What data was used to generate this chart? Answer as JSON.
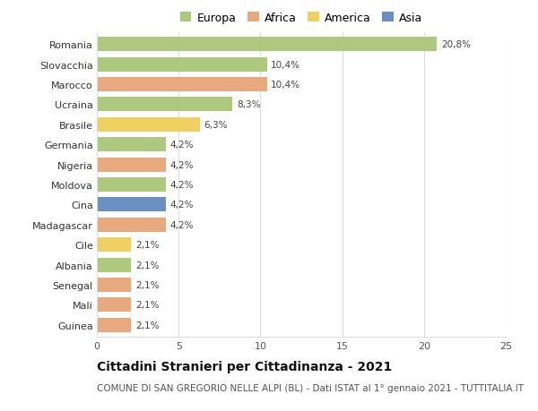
{
  "countries": [
    "Romania",
    "Slovacchia",
    "Marocco",
    "Ucraina",
    "Brasile",
    "Germania",
    "Nigeria",
    "Moldova",
    "Cina",
    "Madagascar",
    "Cile",
    "Albania",
    "Senegal",
    "Mali",
    "Guinea"
  ],
  "values": [
    20.8,
    10.4,
    10.4,
    8.3,
    6.3,
    4.2,
    4.2,
    4.2,
    4.2,
    4.2,
    2.1,
    2.1,
    2.1,
    2.1,
    2.1
  ],
  "labels": [
    "20,8%",
    "10,4%",
    "10,4%",
    "8,3%",
    "6,3%",
    "4,2%",
    "4,2%",
    "4,2%",
    "4,2%",
    "4,2%",
    "2,1%",
    "2,1%",
    "2,1%",
    "2,1%",
    "2,1%"
  ],
  "continents": [
    "Europa",
    "Europa",
    "Africa",
    "Europa",
    "America",
    "Europa",
    "Africa",
    "Europa",
    "Asia",
    "Africa",
    "America",
    "Europa",
    "Africa",
    "Africa",
    "Africa"
  ],
  "continent_colors": {
    "Europa": "#adc97e",
    "Africa": "#e8a97e",
    "America": "#f0d060",
    "Asia": "#6a8fc0"
  },
  "legend_order": [
    "Europa",
    "Africa",
    "America",
    "Asia"
  ],
  "title": "Cittadini Stranieri per Cittadinanza - 2021",
  "subtitle": "COMUNE DI SAN GREGORIO NELLE ALPI (BL) - Dati ISTAT al 1° gennaio 2021 - TUTTITALIA.IT",
  "xlim": [
    0,
    25
  ],
  "xticks": [
    0,
    5,
    10,
    15,
    20,
    25
  ],
  "background_color": "#ffffff",
  "grid_color": "#dddddd",
  "bar_height": 0.72,
  "label_fontsize": 7.5,
  "ytick_fontsize": 8.0,
  "xtick_fontsize": 8.0,
  "legend_fontsize": 9.0,
  "title_fontsize": 10.0,
  "subtitle_fontsize": 7.5
}
